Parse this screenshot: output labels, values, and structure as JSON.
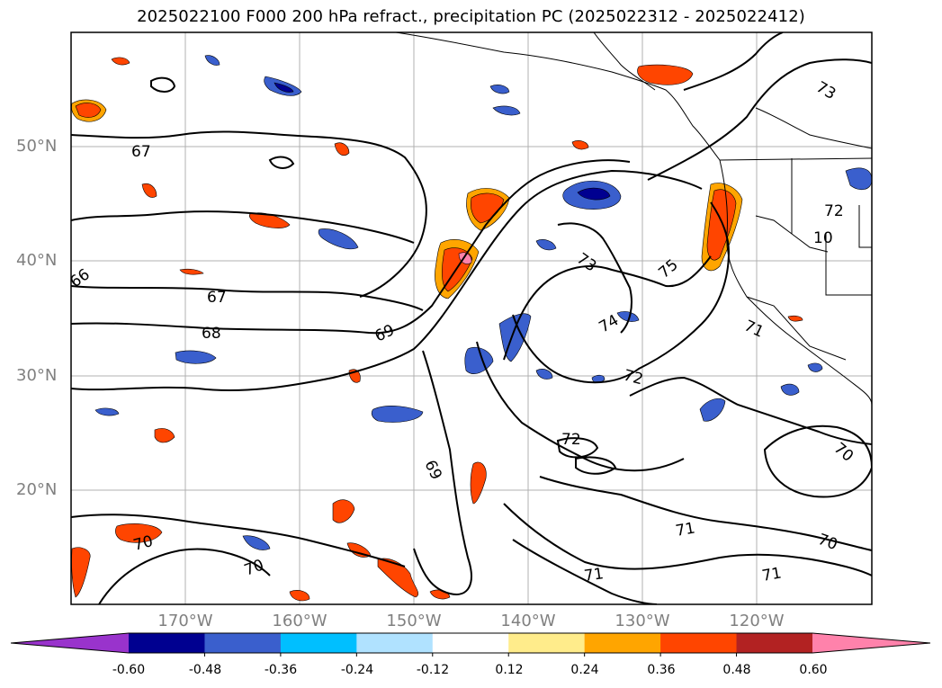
{
  "title": "2025022100 F000 200 hPa refract., precipitation PC (2025022312 - 2025022412)",
  "map": {
    "lat_labels": [
      "50°N",
      "40°N",
      "30°N",
      "20°N"
    ],
    "lon_labels": [
      "170°W",
      "160°W",
      "150°W",
      "140°W",
      "130°W",
      "120°W"
    ],
    "contour_labels": [
      "66",
      "67",
      "67",
      "68",
      "69",
      "69",
      "70",
      "70",
      "70",
      "70",
      "71",
      "71",
      "71",
      "71",
      "72",
      "72",
      "72",
      "73",
      "73",
      "74",
      "75",
      "10"
    ],
    "contour_line_color": "#000000",
    "grid": true,
    "land_color": "#ffffff"
  },
  "colorbar": {
    "ticks": [
      "-0.60",
      "-0.48",
      "-0.36",
      "-0.24",
      "-0.12",
      "0.12",
      "0.24",
      "0.36",
      "0.48",
      "0.60"
    ],
    "colors": [
      "#9933cc",
      "#000090",
      "#3a5fcd",
      "#00bfff",
      "#b0e2ff",
      "#ffffff",
      "#ffec8b",
      "#ffa500",
      "#ff4500",
      "#b22222",
      "#ff82ab"
    ],
    "extend": "both"
  }
}
